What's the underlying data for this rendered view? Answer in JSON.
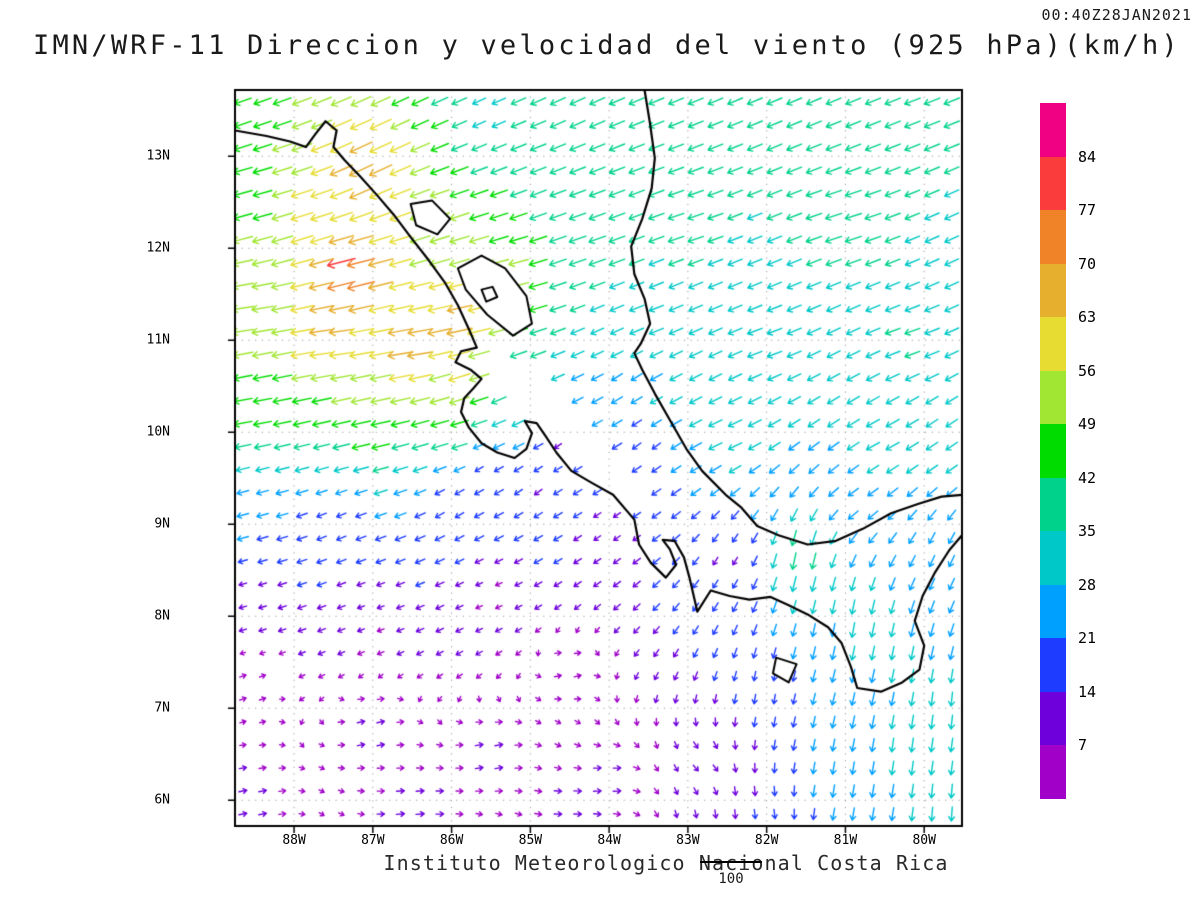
{
  "header": {
    "timestamp": "00:40Z28JAN2021",
    "title": "IMN/WRF-11 Direccion y velocidad del viento (925 hPa)(km/h)"
  },
  "footer": {
    "institution": "Instituto Meteorologico Nacional Costa Rica",
    "reference_vector_label": "100"
  },
  "chart_data": {
    "type": "vector_field",
    "title": "IMN/WRF-11 Direccion y velocidad del viento (925 hPa)(km/h)",
    "valid_time": "00:40Z28JAN2021",
    "units": "km/h",
    "level_hpa": 925,
    "lon_range": [
      -88.75,
      -79.52
    ],
    "lat_range": [
      5.72,
      13.72
    ],
    "x_tick_labels": [
      "88W",
      "87W",
      "86W",
      "85W",
      "84W",
      "83W",
      "82W",
      "81W",
      "80W"
    ],
    "x_tick_lons": [
      -88,
      -87,
      -86,
      -85,
      -84,
      -83,
      -82,
      -81,
      -80
    ],
    "y_tick_labels": [
      "6N",
      "7N",
      "8N",
      "9N",
      "10N",
      "11N",
      "12N",
      "13N"
    ],
    "y_tick_lats": [
      6,
      7,
      8,
      9,
      10,
      11,
      12,
      13
    ],
    "reference_vector_kmh": 100,
    "arrow_grid_step_deg": 0.25,
    "colorbar": {
      "levels_kmh": [
        7,
        14,
        21,
        28,
        35,
        42,
        49,
        56,
        63,
        70,
        77,
        84
      ],
      "colors_bottom_to_top": [
        "#a000c8",
        "#6e00dc",
        "#1e3cff",
        "#00a0ff",
        "#00c8c8",
        "#00d28c",
        "#00dc00",
        "#a0e632",
        "#e6dc32",
        "#e6af2d",
        "#f08228",
        "#fa3c3c",
        "#f00082"
      ],
      "tick_labels_top_to_bottom": [
        "84",
        "77",
        "70",
        "63",
        "56",
        "49",
        "42",
        "35",
        "28",
        "21",
        "14",
        "7"
      ]
    },
    "wind_field_control_points": [
      [
        -88.6,
        13.6,
        -40,
        -14
      ],
      [
        -86.5,
        13.6,
        -38,
        -18
      ],
      [
        -85.6,
        13.45,
        -26,
        -12
      ],
      [
        -84.5,
        13.6,
        -34,
        -16
      ],
      [
        -82.0,
        13.6,
        -34,
        -14
      ],
      [
        -80.0,
        13.6,
        -36,
        -14
      ],
      [
        -88.5,
        12.5,
        -45,
        -12
      ],
      [
        -87.1,
        12.85,
        -62,
        -30
      ],
      [
        -86.9,
        13.2,
        -56,
        -26
      ],
      [
        -87.3,
        11.75,
        -80,
        -20
      ],
      [
        -87.8,
        12.3,
        -56,
        -18
      ],
      [
        -86.0,
        12.2,
        -48,
        -15
      ],
      [
        -85.3,
        11.6,
        -52,
        -12
      ],
      [
        -84.8,
        12.8,
        -36,
        -14
      ],
      [
        -84.3,
        12.0,
        -40,
        -14
      ],
      [
        -83.0,
        12.3,
        -36,
        -12
      ],
      [
        -81.0,
        12.3,
        -38,
        -12
      ],
      [
        -88.6,
        11.3,
        -55,
        -8
      ],
      [
        -87.5,
        11.0,
        -65,
        -8
      ],
      [
        -86.5,
        10.9,
        -70,
        -10
      ],
      [
        -85.9,
        11.15,
        -70,
        -15
      ],
      [
        -85.9,
        10.55,
        -56,
        -18
      ],
      [
        -88.6,
        10.3,
        -45,
        -8
      ],
      [
        -87.0,
        10.2,
        -48,
        -10
      ],
      [
        -86.0,
        10.05,
        -44,
        -12
      ],
      [
        -85.2,
        10.3,
        -30,
        -15
      ],
      [
        -83.5,
        11.2,
        -32,
        -12
      ],
      [
        -82.0,
        11.0,
        -33,
        -12
      ],
      [
        -80.2,
        11.0,
        -34,
        -12
      ],
      [
        -82.5,
        10.0,
        -30,
        -14
      ],
      [
        -80.5,
        9.9,
        -30,
        -16
      ],
      [
        -83.3,
        10.35,
        -26,
        -14
      ],
      [
        -84.0,
        10.9,
        -26,
        -12
      ],
      [
        -83.8,
        10.6,
        -20,
        -14
      ],
      [
        -88.6,
        9.2,
        -22,
        -6
      ],
      [
        -87.5,
        9.0,
        -14,
        -6
      ],
      [
        -86.0,
        9.2,
        -12,
        -8
      ],
      [
        -85.0,
        9.4,
        -10,
        -8
      ],
      [
        -84.0,
        8.9,
        -7,
        -5
      ],
      [
        -85.6,
        9.6,
        -10,
        -7
      ],
      [
        -84.6,
        9.9,
        -8,
        -6
      ],
      [
        -83.5,
        9.9,
        -12,
        -10
      ],
      [
        -88.6,
        8.2,
        -8,
        -2
      ],
      [
        -87.0,
        8.0,
        -6,
        -2
      ],
      [
        -85.5,
        8.2,
        -5,
        -2
      ],
      [
        -88.6,
        7.2,
        6,
        2
      ],
      [
        -87.0,
        6.8,
        9,
        2
      ],
      [
        -85.5,
        6.5,
        10,
        2
      ],
      [
        -84.0,
        6.2,
        9,
        1
      ],
      [
        -88.6,
        6.0,
        10,
        2
      ],
      [
        -86.5,
        5.9,
        11,
        1
      ],
      [
        -84.5,
        5.9,
        9,
        0
      ],
      [
        -84.5,
        7.4,
        7,
        2
      ],
      [
        -82.8,
        6.4,
        6,
        -6
      ],
      [
        -82.0,
        7.2,
        -2,
        -14
      ],
      [
        -82.0,
        5.9,
        2,
        -14
      ],
      [
        -81.0,
        6.2,
        -4,
        -25
      ],
      [
        -80.2,
        6.5,
        -4,
        -30
      ],
      [
        -80.3,
        7.6,
        -5,
        -28
      ],
      [
        -79.7,
        7.0,
        -3,
        -30
      ],
      [
        -79.7,
        5.9,
        -2,
        -30
      ],
      [
        -79.8,
        8.6,
        -10,
        -22
      ],
      [
        -81.2,
        7.9,
        -5,
        -26
      ],
      [
        -81.6,
        8.6,
        -8,
        -40
      ],
      [
        -80.9,
        7.9,
        -6,
        -34
      ],
      [
        -82.5,
        8.6,
        -6,
        -10
      ],
      [
        -80.8,
        9.3,
        -20,
        -14
      ],
      [
        -79.7,
        9.8,
        -24,
        -16
      ]
    ],
    "coastlines": [
      [
        [
          -88.75,
          13.28
        ],
        [
          -88.35,
          13.22
        ],
        [
          -88.05,
          13.16
        ],
        [
          -87.85,
          13.1
        ],
        [
          -87.73,
          13.24
        ],
        [
          -87.6,
          13.38
        ],
        [
          -87.46,
          13.28
        ],
        [
          -87.5,
          13.1
        ],
        [
          -87.36,
          12.96
        ],
        [
          -87.16,
          12.78
        ],
        [
          -86.95,
          12.58
        ],
        [
          -86.74,
          12.37
        ],
        [
          -86.52,
          12.12
        ],
        [
          -86.3,
          11.88
        ],
        [
          -86.08,
          11.62
        ],
        [
          -85.92,
          11.38
        ],
        [
          -85.78,
          11.12
        ],
        [
          -85.68,
          10.92
        ],
        [
          -85.88,
          10.88
        ],
        [
          -85.95,
          10.76
        ],
        [
          -85.76,
          10.68
        ],
        [
          -85.62,
          10.58
        ],
        [
          -85.72,
          10.48
        ],
        [
          -85.84,
          10.37
        ],
        [
          -85.88,
          10.22
        ],
        [
          -85.78,
          10.05
        ],
        [
          -85.62,
          9.88
        ],
        [
          -85.42,
          9.78
        ],
        [
          -85.2,
          9.72
        ],
        [
          -85.05,
          9.82
        ],
        [
          -84.98,
          9.99
        ],
        [
          -85.07,
          10.12
        ],
        [
          -84.92,
          10.1
        ],
        [
          -84.8,
          9.95
        ],
        [
          -84.67,
          9.78
        ],
        [
          -84.48,
          9.58
        ],
        [
          -84.22,
          9.45
        ],
        [
          -83.95,
          9.32
        ],
        [
          -83.68,
          9.05
        ],
        [
          -83.62,
          8.78
        ],
        [
          -83.47,
          8.58
        ],
        [
          -83.28,
          8.42
        ],
        [
          -83.15,
          8.56
        ],
        [
          -83.23,
          8.73
        ],
        [
          -83.32,
          8.83
        ],
        [
          -83.17,
          8.82
        ],
        [
          -83.05,
          8.64
        ],
        [
          -82.98,
          8.42
        ],
        [
          -82.88,
          8.05
        ],
        [
          -82.71,
          8.28
        ],
        [
          -82.47,
          8.22
        ],
        [
          -82.22,
          8.18
        ],
        [
          -81.95,
          8.21
        ],
        [
          -81.72,
          8.12
        ],
        [
          -81.48,
          8.02
        ],
        [
          -81.22,
          7.88
        ],
        [
          -81.05,
          7.71
        ],
        [
          -80.93,
          7.45
        ],
        [
          -80.85,
          7.22
        ],
        [
          -80.55,
          7.18
        ],
        [
          -80.28,
          7.28
        ],
        [
          -80.06,
          7.42
        ],
        [
          -80.0,
          7.68
        ],
        [
          -80.12,
          7.95
        ],
        [
          -80.02,
          8.22
        ],
        [
          -79.86,
          8.48
        ],
        [
          -79.68,
          8.72
        ],
        [
          -79.52,
          8.88
        ]
      ],
      [
        [
          -79.52,
          9.32
        ],
        [
          -79.78,
          9.3
        ],
        [
          -80.08,
          9.22
        ],
        [
          -80.42,
          9.12
        ],
        [
          -80.78,
          8.95
        ],
        [
          -81.12,
          8.82
        ],
        [
          -81.48,
          8.78
        ],
        [
          -81.85,
          8.88
        ],
        [
          -82.12,
          8.98
        ],
        [
          -82.32,
          9.18
        ],
        [
          -82.52,
          9.32
        ],
        [
          -82.82,
          9.58
        ],
        [
          -83.02,
          9.82
        ],
        [
          -83.22,
          10.12
        ],
        [
          -83.42,
          10.42
        ],
        [
          -83.58,
          10.68
        ],
        [
          -83.68,
          10.86
        ],
        [
          -83.6,
          10.96
        ],
        [
          -83.48,
          11.18
        ],
        [
          -83.55,
          11.45
        ],
        [
          -83.68,
          11.72
        ],
        [
          -83.72,
          12.02
        ],
        [
          -83.58,
          12.32
        ],
        [
          -83.46,
          12.65
        ],
        [
          -83.42,
          12.98
        ],
        [
          -83.48,
          13.35
        ],
        [
          -83.55,
          13.72
        ]
      ]
    ],
    "lakes": [
      [
        [
          -85.92,
          11.78
        ],
        [
          -85.62,
          11.92
        ],
        [
          -85.32,
          11.78
        ],
        [
          -85.05,
          11.48
        ],
        [
          -84.98,
          11.18
        ],
        [
          -85.22,
          11.05
        ],
        [
          -85.55,
          11.28
        ],
        [
          -85.82,
          11.55
        ]
      ],
      [
        [
          -86.52,
          12.48
        ],
        [
          -86.25,
          12.52
        ],
        [
          -86.02,
          12.32
        ],
        [
          -86.18,
          12.15
        ],
        [
          -86.45,
          12.25
        ]
      ],
      [
        [
          -85.62,
          11.55
        ],
        [
          -85.48,
          11.58
        ],
        [
          -85.42,
          11.47
        ],
        [
          -85.56,
          11.42
        ]
      ],
      [
        [
          -81.88,
          7.55
        ],
        [
          -81.62,
          7.48
        ],
        [
          -81.72,
          7.28
        ],
        [
          -81.92,
          7.38
        ]
      ]
    ],
    "terrain_mask_no_data": [
      [
        [
          -85.45,
          10.95
        ],
        [
          -84.95,
          10.72
        ],
        [
          -84.45,
          10.28
        ],
        [
          -83.95,
          9.78
        ],
        [
          -83.62,
          9.35
        ],
        [
          -83.95,
          9.15
        ],
        [
          -84.35,
          9.55
        ],
        [
          -84.85,
          10.05
        ],
        [
          -85.35,
          10.5
        ],
        [
          -85.65,
          10.75
        ]
      ]
    ]
  }
}
